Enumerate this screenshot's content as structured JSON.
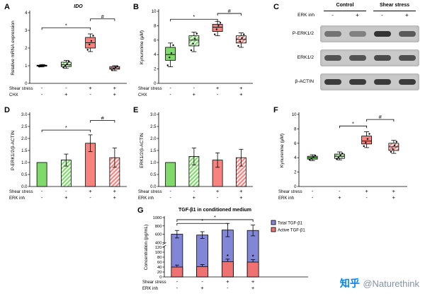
{
  "watermark": {
    "logo": "知乎",
    "handle": "@Naturethink"
  },
  "colors": {
    "green": "#7fd96b",
    "red": "#f8837e",
    "blue": "#8187d6",
    "activered": "#ef7272"
  },
  "western_blot": {
    "panel": "C",
    "col_groups": [
      {
        "label": "Control"
      },
      {
        "label": "Shear stress"
      }
    ],
    "inh_label": "ERK inh",
    "inh_values": [
      "-",
      "+",
      "-",
      "+"
    ],
    "rows": [
      {
        "label": "P-ERK1/2",
        "bands": [
          0.55,
          0.45,
          0.95,
          0.7
        ]
      },
      {
        "label": "ERK1/2",
        "bands": [
          0.75,
          0.75,
          0.8,
          0.78
        ]
      },
      {
        "label": "β-ACTIN",
        "bands": [
          0.9,
          0.9,
          0.9,
          0.9
        ]
      }
    ]
  },
  "chart_data": [
    {
      "panel": "A",
      "type": "box",
      "title": "IDO",
      "title_italic": true,
      "ylabel": "Relative mRNA expression",
      "ylim": [
        0,
        4
      ],
      "yticks": [
        0,
        1,
        2,
        3,
        4
      ],
      "groups": [
        {
          "fill": "green",
          "hatch": false,
          "whislo": 0.93,
          "q1": 0.97,
          "med": 1.0,
          "q3": 1.03,
          "whishi": 1.07,
          "points": [
            0.95,
            0.98,
            1.0,
            1.02
          ]
        },
        {
          "fill": "green",
          "hatch": true,
          "whislo": 0.85,
          "q1": 0.95,
          "med": 1.05,
          "q3": 1.2,
          "whishi": 1.3,
          "points": [
            0.9,
            1.0,
            1.1,
            1.25
          ]
        },
        {
          "fill": "red",
          "hatch": false,
          "whislo": 1.8,
          "q1": 2.0,
          "med": 2.3,
          "q3": 2.6,
          "whishi": 2.8,
          "points": [
            1.9,
            2.2,
            2.4,
            2.7
          ]
        },
        {
          "fill": "red",
          "hatch": true,
          "whislo": 0.72,
          "q1": 0.8,
          "med": 0.87,
          "q3": 0.95,
          "whishi": 1.0,
          "points": [
            0.75,
            0.85,
            0.9,
            0.97
          ]
        }
      ],
      "factors": [
        {
          "label": "Shear stress",
          "values": [
            "-",
            "-",
            "+",
            "+"
          ]
        },
        {
          "label": "CHX",
          "values": [
            "-",
            "+",
            "-",
            "+"
          ]
        }
      ],
      "sig": [
        {
          "a": 0,
          "b": 2,
          "y": 3.15,
          "label": "*"
        },
        {
          "a": 2,
          "b": 3,
          "y": 3.65,
          "label": "#"
        }
      ]
    },
    {
      "panel": "B",
      "type": "box",
      "title": "",
      "ylabel": "Kynurenine (μM)",
      "ylim": [
        0,
        10
      ],
      "yticks": [
        0,
        2,
        4,
        6,
        8,
        10
      ],
      "groups": [
        {
          "fill": "green",
          "hatch": false,
          "whislo": 2.3,
          "q1": 3.2,
          "med": 4.0,
          "q3": 5.0,
          "whishi": 5.6,
          "points": [
            2.5,
            3.6,
            4.2,
            5.3
          ]
        },
        {
          "fill": "green",
          "hatch": true,
          "whislo": 4.4,
          "q1": 5.2,
          "med": 6.0,
          "q3": 6.6,
          "whishi": 7.1,
          "points": [
            4.6,
            5.5,
            6.2,
            6.9
          ]
        },
        {
          "fill": "red",
          "hatch": false,
          "whislo": 6.6,
          "q1": 7.2,
          "med": 7.8,
          "q3": 8.2,
          "whishi": 8.6,
          "points": [
            6.8,
            7.5,
            8.0,
            8.4
          ]
        },
        {
          "fill": "red",
          "hatch": true,
          "whislo": 5.0,
          "q1": 5.6,
          "med": 6.1,
          "q3": 6.6,
          "whishi": 7.0,
          "points": [
            5.2,
            5.8,
            6.3,
            6.8
          ]
        }
      ],
      "factors": [
        {
          "label": "Shear stress",
          "values": [
            "-",
            "-",
            "+",
            "+"
          ]
        },
        {
          "label": "CHX",
          "values": [
            "-",
            "+",
            "-",
            "+"
          ]
        }
      ],
      "sig": [
        {
          "a": 0,
          "b": 2,
          "y": 8.9,
          "label": "*"
        },
        {
          "a": 2,
          "b": 3,
          "y": 9.7,
          "label": "#"
        }
      ]
    },
    {
      "panel": "D",
      "type": "bar",
      "title": "",
      "ylabel": "P-ERK1/2/β-ACTIN",
      "ylim": [
        0,
        3
      ],
      "yticks": [
        "0.0",
        "0.5",
        "1.0",
        "1.5",
        "2.0",
        "2.5",
        "3.0"
      ],
      "groups": [
        {
          "fill": "green",
          "hatch": false,
          "value": 1.0,
          "err": 0
        },
        {
          "fill": "green",
          "hatch": true,
          "value": 1.1,
          "err": 0.25
        },
        {
          "fill": "red",
          "hatch": false,
          "value": 1.8,
          "err": 0.35
        },
        {
          "fill": "red",
          "hatch": true,
          "value": 1.2,
          "err": 0.4
        }
      ],
      "factors": [
        {
          "label": "Shear stress",
          "values": [
            "-",
            "-",
            "+",
            "+"
          ]
        },
        {
          "label": "ERK inh",
          "values": [
            "-",
            "+",
            "-",
            "+"
          ]
        }
      ],
      "sig": [
        {
          "a": 0,
          "b": 2,
          "y": 2.35,
          "label": "*"
        },
        {
          "a": 2,
          "b": 3,
          "y": 2.75,
          "label": "#"
        }
      ]
    },
    {
      "panel": "E",
      "type": "bar",
      "title": "",
      "ylabel": "ERK1/2/β-ACTIN",
      "ylim": [
        0,
        3
      ],
      "yticks": [
        "0.0",
        "0.5",
        "1.0",
        "1.5",
        "2.0",
        "2.5",
        "3.0"
      ],
      "groups": [
        {
          "fill": "green",
          "hatch": false,
          "value": 1.0,
          "err": 0
        },
        {
          "fill": "green",
          "hatch": true,
          "value": 1.25,
          "err": 0.35
        },
        {
          "fill": "red",
          "hatch": false,
          "value": 1.1,
          "err": 0.3
        },
        {
          "fill": "red",
          "hatch": true,
          "value": 1.2,
          "err": 0.35
        }
      ],
      "factors": [
        {
          "label": "Shear stress",
          "values": [
            "-",
            "-",
            "+",
            "+"
          ]
        },
        {
          "label": "ERK inh",
          "values": [
            "-",
            "+",
            "-",
            "+"
          ]
        }
      ],
      "sig": []
    },
    {
      "panel": "F",
      "type": "box",
      "title": "",
      "ylabel": "Kynurenine (μM)",
      "ylim": [
        0,
        10
      ],
      "yticks": [
        0,
        2,
        4,
        6,
        8,
        10
      ],
      "groups": [
        {
          "fill": "green",
          "hatch": false,
          "whislo": 3.6,
          "q1": 3.8,
          "med": 4.0,
          "q3": 4.2,
          "whishi": 4.4,
          "points": [
            3.7,
            3.9,
            4.1,
            4.3
          ]
        },
        {
          "fill": "green",
          "hatch": true,
          "whislo": 3.7,
          "q1": 3.9,
          "med": 4.2,
          "q3": 4.5,
          "whishi": 4.8,
          "points": [
            3.8,
            4.0,
            4.3,
            4.6
          ]
        },
        {
          "fill": "red",
          "hatch": false,
          "whislo": 5.4,
          "q1": 5.9,
          "med": 6.3,
          "q3": 7.0,
          "whishi": 7.6,
          "points": [
            5.6,
            6.1,
            6.6,
            7.3
          ]
        },
        {
          "fill": "red",
          "hatch": true,
          "whislo": 4.6,
          "q1": 5.0,
          "med": 5.5,
          "q3": 6.0,
          "whishi": 6.4,
          "points": [
            4.8,
            5.2,
            5.7,
            6.2
          ]
        }
      ],
      "factors": [
        {
          "label": "Shear stress",
          "values": [
            "-",
            "-",
            "+",
            "+"
          ]
        },
        {
          "label": "ERK inh",
          "values": [
            "-",
            "+",
            "-",
            "+"
          ]
        }
      ],
      "sig": [
        {
          "a": 1,
          "b": 2,
          "y": 8.4,
          "label": "*"
        },
        {
          "a": 2,
          "b": 3,
          "y": 9.3,
          "label": "#"
        }
      ]
    },
    {
      "panel": "G",
      "type": "stackbar",
      "title": "TGF-β1 in conditioned medium",
      "ylabel": "Concentration (pg/mL)",
      "ybreak": {
        "lower": [
          0,
          120
        ],
        "lower_ticks": [
          0,
          20,
          40,
          60,
          80,
          100,
          120
        ],
        "upper": [
          400,
          1000
        ],
        "upper_ticks": [
          400,
          600,
          800,
          1000
        ]
      },
      "legend": [
        {
          "label": "Total TGF-β1",
          "fill": "blue"
        },
        {
          "label": "Active TGF-β1",
          "fill": "activered"
        }
      ],
      "groups": [
        {
          "total": 600,
          "total_err": 90,
          "active": 40,
          "active_err": 8,
          "star": false
        },
        {
          "total": 580,
          "total_err": 80,
          "active": 42,
          "active_err": 8,
          "star": false
        },
        {
          "total": 700,
          "total_err": 160,
          "active": 62,
          "active_err": 10,
          "star": true
        },
        {
          "total": 690,
          "total_err": 130,
          "active": 60,
          "active_err": 10,
          "star": true
        }
      ],
      "factors": [
        {
          "label": "Shear stress",
          "values": [
            "-",
            "-",
            "+",
            "+"
          ]
        },
        {
          "label": "ERK inh",
          "values": [
            "-",
            "+",
            "-",
            "+"
          ]
        }
      ],
      "sig": [
        {
          "a": 0,
          "b": 2,
          "y": 860,
          "label": "*"
        },
        {
          "a": 0,
          "b": 3,
          "y": 950,
          "label": "*"
        }
      ]
    }
  ]
}
